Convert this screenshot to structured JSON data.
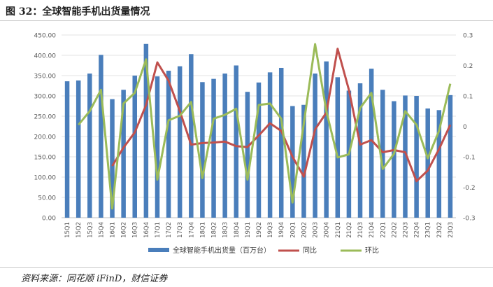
{
  "header": {
    "title": "图 32：全球智能手机出货量情况"
  },
  "footer": {
    "source": "资料来源：同花顺 iFinD，财信证券"
  },
  "chart_data": {
    "type": "bar+line",
    "title": "",
    "categories": [
      "15Q1",
      "15Q2",
      "15Q3",
      "15Q4",
      "16Q1",
      "16Q2",
      "16Q3",
      "16Q4",
      "17Q1",
      "17Q2",
      "17Q3",
      "17Q4",
      "18Q1",
      "18Q2",
      "18Q3",
      "18Q4",
      "19Q1",
      "19Q2",
      "19Q3",
      "19Q4",
      "20Q1",
      "20Q2",
      "20Q3",
      "20Q4",
      "21Q1",
      "21Q2",
      "21Q3",
      "21Q4",
      "22Q1",
      "22Q2",
      "22Q3",
      "22Q4",
      "23Q1",
      "23Q2",
      "23Q3"
    ],
    "left_axis": {
      "min": 0,
      "max": 450,
      "step": 50,
      "tick_labels": [
        "0.00",
        "50.00",
        "100.00",
        "150.00",
        "200.00",
        "250.00",
        "300.00",
        "350.00",
        "400.00",
        "450.00"
      ]
    },
    "right_axis": {
      "min": -0.3,
      "max": 0.3,
      "step": 0.1,
      "tick_labels": [
        "-0.3",
        "-0.2",
        "-0.1",
        "0",
        "0.1",
        "0.2",
        "0.3"
      ]
    },
    "legend_position": "bottom",
    "series": [
      {
        "name": "全球智能手机出货量（百万台）",
        "type": "bar",
        "axis": "left",
        "color": "#4a7ebb",
        "values": [
          336,
          338,
          355,
          401,
          292,
          315,
          350,
          428,
          348,
          362,
          373,
          403,
          334,
          342,
          355,
          375,
          310,
          333,
          358,
          369,
          275,
          278,
          355,
          385,
          346,
          313,
          331,
          367,
          315,
          287,
          301,
          300,
          269,
          265,
          302
        ]
      },
      {
        "name": "同比",
        "type": "line",
        "axis": "right",
        "color": "#c0504d",
        "values": [
          null,
          null,
          null,
          null,
          -0.13,
          -0.07,
          -0.02,
          0.07,
          0.21,
          0.15,
          0.05,
          -0.06,
          -0.055,
          -0.053,
          -0.05,
          -0.065,
          -0.068,
          -0.03,
          0.01,
          -0.015,
          -0.1,
          -0.165,
          -0.01,
          0.045,
          0.255,
          0.12,
          -0.06,
          -0.045,
          -0.085,
          -0.078,
          -0.085,
          -0.18,
          -0.145,
          -0.075,
          0.005
        ]
      },
      {
        "name": "环比",
        "type": "line",
        "axis": "right",
        "color": "#9bbb59",
        "values": [
          null,
          0.005,
          0.05,
          0.12,
          -0.27,
          0.075,
          0.11,
          0.22,
          -0.175,
          0.02,
          0.035,
          0.08,
          -0.17,
          0.025,
          0.038,
          0.058,
          -0.175,
          0.07,
          0.075,
          0.025,
          -0.25,
          0.01,
          0.27,
          0.05,
          -0.102,
          -0.092,
          0.06,
          0.11,
          -0.14,
          -0.09,
          0.05,
          0.005,
          -0.105,
          -0.015,
          0.14
        ]
      }
    ]
  }
}
